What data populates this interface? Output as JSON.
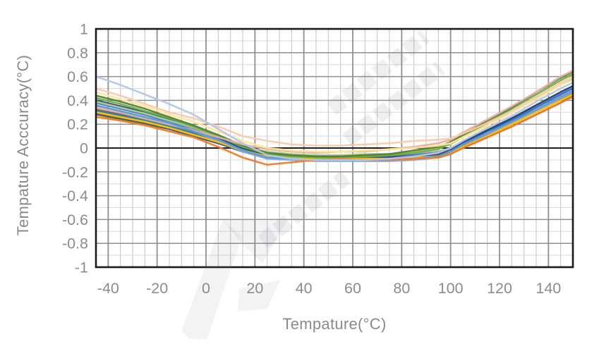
{
  "page": {
    "background": "#ffffff"
  },
  "watermark": {
    "present": true
  },
  "chart_data": {
    "type": "line",
    "title": "",
    "xlabel": "Tempature(°C)",
    "ylabel": "Tempature Acccuracy(°C)",
    "xlim": [
      -45,
      150
    ],
    "ylim": [
      -1,
      1
    ],
    "xtick_labels": [
      "-40",
      "-20",
      "0",
      "20",
      "40",
      "60",
      "80",
      "100",
      "120",
      "140"
    ],
    "ytick_labels": [
      "1",
      "0.8",
      "0.6",
      "0.4",
      "0.2",
      "0",
      "-0.2",
      "-0.4",
      "-0.6",
      "-0.8",
      "-1"
    ],
    "x_major_step": 20,
    "x_minor_step": 5,
    "y_major_step": 0.2,
    "y_minor_step": 0.1,
    "grid": {
      "major": true,
      "minor": true
    },
    "legend": "none",
    "axis_text_color": "#8c8c8c",
    "grid_major_color": "#8f8f8f",
    "grid_minor_color": "#c6c6c6",
    "border_color": "#1a1a1a",
    "zero_line_color": "#1f1f1f",
    "x": [
      -45,
      -35,
      -25,
      -15,
      -5,
      5,
      15,
      25,
      35,
      45,
      55,
      65,
      75,
      85,
      95,
      100,
      105,
      115,
      125,
      135,
      145,
      150
    ],
    "series": [
      {
        "name": "series-01",
        "color": "#A5A5A5",
        "values": [
          0.33,
          0.29,
          0.24,
          0.19,
          0.13,
          0.07,
          0.0,
          -0.05,
          -0.06,
          -0.07,
          -0.07,
          -0.07,
          -0.06,
          -0.05,
          -0.03,
          0.0,
          0.05,
          0.15,
          0.25,
          0.36,
          0.47,
          0.52
        ]
      },
      {
        "name": "series-02",
        "color": "#636363",
        "values": [
          0.32,
          0.28,
          0.23,
          0.18,
          0.13,
          0.06,
          0.0,
          -0.05,
          -0.06,
          -0.07,
          -0.07,
          -0.07,
          -0.07,
          -0.06,
          -0.04,
          -0.01,
          0.04,
          0.14,
          0.23,
          0.34,
          0.45,
          0.5
        ]
      },
      {
        "name": "series-03",
        "color": "#997300",
        "values": [
          0.28,
          0.24,
          0.2,
          0.16,
          0.1,
          0.04,
          -0.02,
          -0.06,
          -0.07,
          -0.08,
          -0.08,
          -0.08,
          -0.08,
          -0.07,
          -0.06,
          -0.03,
          0.02,
          0.11,
          0.2,
          0.31,
          0.41,
          0.46
        ]
      },
      {
        "name": "series-04",
        "color": "#34558B",
        "values": [
          0.29,
          0.25,
          0.21,
          0.16,
          0.1,
          0.04,
          -0.03,
          -0.08,
          -0.09,
          -0.1,
          -0.1,
          -0.1,
          -0.1,
          -0.09,
          -0.08,
          -0.05,
          0.0,
          0.09,
          0.18,
          0.28,
          0.38,
          0.44
        ]
      },
      {
        "name": "series-05",
        "color": "#31859C",
        "values": [
          0.31,
          0.27,
          0.23,
          0.18,
          0.12,
          0.06,
          -0.01,
          -0.06,
          -0.08,
          -0.09,
          -0.09,
          -0.09,
          -0.08,
          -0.07,
          -0.05,
          -0.01,
          0.04,
          0.14,
          0.24,
          0.34,
          0.45,
          0.5
        ]
      },
      {
        "name": "series-06",
        "color": "#8FAADC",
        "values": [
          0.35,
          0.31,
          0.26,
          0.2,
          0.14,
          0.06,
          -0.03,
          -0.09,
          -0.1,
          -0.11,
          -0.11,
          -0.11,
          -0.11,
          -0.1,
          -0.08,
          -0.04,
          0.01,
          0.11,
          0.21,
          0.31,
          0.42,
          0.47
        ]
      },
      {
        "name": "series-07",
        "color": "#4472C4",
        "values": [
          0.38,
          0.33,
          0.28,
          0.22,
          0.16,
          0.08,
          0.0,
          -0.05,
          -0.07,
          -0.08,
          -0.08,
          -0.08,
          -0.08,
          -0.06,
          -0.04,
          -0.01,
          0.04,
          0.14,
          0.23,
          0.34,
          0.45,
          0.5
        ]
      },
      {
        "name": "series-08",
        "color": "#264478",
        "values": [
          0.4,
          0.35,
          0.3,
          0.24,
          0.17,
          0.09,
          0.0,
          -0.06,
          -0.08,
          -0.09,
          -0.09,
          -0.09,
          -0.08,
          -0.07,
          -0.05,
          -0.01,
          0.05,
          0.15,
          0.25,
          0.36,
          0.47,
          0.52
        ]
      },
      {
        "name": "series-09",
        "color": "#FFC000",
        "values": [
          0.3,
          0.26,
          0.22,
          0.17,
          0.11,
          0.05,
          -0.02,
          -0.07,
          -0.08,
          -0.09,
          -0.09,
          -0.09,
          -0.09,
          -0.08,
          -0.07,
          -0.04,
          0.01,
          0.1,
          0.2,
          0.3,
          0.4,
          0.45
        ]
      },
      {
        "name": "series-10",
        "color": "#A9D18E",
        "values": [
          0.39,
          0.34,
          0.29,
          0.23,
          0.17,
          0.1,
          0.01,
          -0.03,
          -0.05,
          -0.06,
          -0.06,
          -0.05,
          -0.05,
          -0.03,
          0.0,
          0.03,
          0.09,
          0.19,
          0.3,
          0.42,
          0.53,
          0.58
        ]
      },
      {
        "name": "series-11",
        "color": "#70AD47",
        "values": [
          0.42,
          0.37,
          0.31,
          0.25,
          0.18,
          0.1,
          0.01,
          -0.05,
          -0.07,
          -0.08,
          -0.08,
          -0.07,
          -0.06,
          -0.04,
          -0.01,
          0.04,
          0.1,
          0.21,
          0.33,
          0.45,
          0.57,
          0.62
        ]
      },
      {
        "name": "series-12",
        "color": "#548235",
        "values": [
          0.44,
          0.39,
          0.33,
          0.26,
          0.19,
          0.11,
          0.02,
          -0.04,
          -0.06,
          -0.07,
          -0.07,
          -0.06,
          -0.05,
          -0.02,
          0.01,
          0.05,
          0.11,
          0.23,
          0.34,
          0.47,
          0.59,
          0.64
        ]
      },
      {
        "name": "series-13",
        "color": "#E8AFA8",
        "values": [
          0.34,
          0.3,
          0.25,
          0.2,
          0.15,
          0.09,
          0.03,
          -0.01,
          -0.03,
          -0.04,
          -0.03,
          -0.03,
          -0.01,
          0.01,
          0.04,
          0.07,
          0.13,
          0.24,
          0.35,
          0.47,
          0.6,
          0.65
        ]
      },
      {
        "name": "series-14",
        "color": "#FFE699",
        "values": [
          0.47,
          0.41,
          0.35,
          0.28,
          0.22,
          0.14,
          0.06,
          0.0,
          -0.02,
          -0.03,
          -0.03,
          -0.02,
          -0.01,
          0.0,
          0.02,
          0.04,
          0.09,
          0.19,
          0.3,
          0.41,
          0.53,
          0.57
        ]
      },
      {
        "name": "series-15",
        "color": "#5B9BD5",
        "values": [
          0.36,
          0.31,
          0.26,
          0.21,
          0.14,
          0.07,
          -0.02,
          -0.08,
          -0.09,
          -0.1,
          -0.1,
          -0.1,
          -0.1,
          -0.09,
          -0.07,
          -0.03,
          0.03,
          0.12,
          0.22,
          0.32,
          0.43,
          0.48
        ]
      },
      {
        "name": "series-16",
        "color": "#ED7D31",
        "values": [
          0.26,
          0.23,
          0.19,
          0.14,
          0.09,
          0.01,
          -0.08,
          -0.14,
          -0.12,
          -0.1,
          -0.09,
          -0.1,
          -0.1,
          -0.09,
          -0.08,
          -0.05,
          0.0,
          0.09,
          0.18,
          0.28,
          0.38,
          0.43
        ]
      },
      {
        "name": "series-17",
        "color": "#F8CBAD",
        "values": [
          0.5,
          0.44,
          0.37,
          0.3,
          0.25,
          0.18,
          0.1,
          0.06,
          0.03,
          0.02,
          0.02,
          0.03,
          0.04,
          0.06,
          0.07,
          0.08,
          0.12,
          0.21,
          0.31,
          0.43,
          0.55,
          0.6
        ]
      },
      {
        "name": "series-18",
        "color": "#B4C7E7",
        "values": [
          0.6,
          0.53,
          0.45,
          0.37,
          0.28,
          0.16,
          0.04,
          -0.06,
          -0.09,
          -0.1,
          -0.1,
          -0.1,
          -0.09,
          -0.07,
          -0.04,
          0.0,
          0.06,
          0.17,
          0.27,
          0.39,
          0.5,
          0.55
        ]
      }
    ]
  }
}
